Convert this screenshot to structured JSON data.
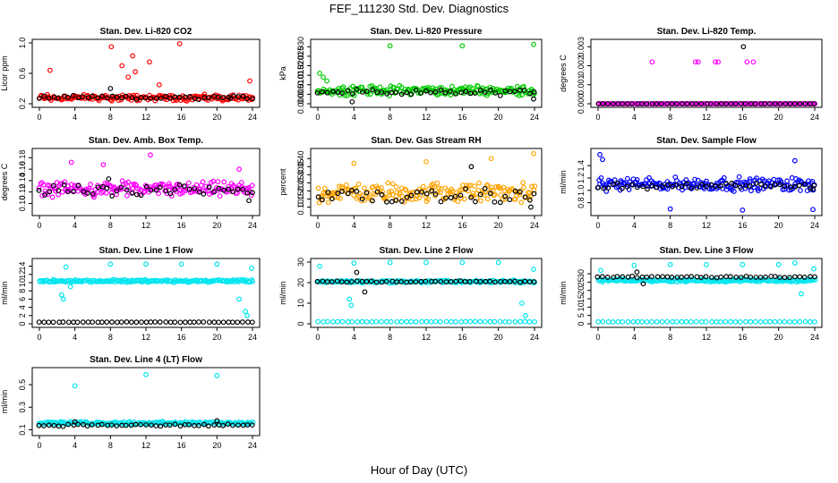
{
  "figure": {
    "title": "FEF_111230  Std. Dev. Diagnostics",
    "xlabel": "Hour of Day (UTC)"
  },
  "chart_data": [
    {
      "type": "scatter",
      "title": "Stan. Dev. Li-820 CO2",
      "ylabel": "Licor ppm",
      "xlim": [
        0,
        24
      ],
      "ylim": [
        0.2,
        1.0
      ],
      "xticks": [
        "0",
        "4",
        "8",
        "12",
        "16",
        "20",
        "24"
      ],
      "yticks": [
        "0.2",
        "0.6",
        "1.0"
      ],
      "series": [
        {
          "color": "#ff0000",
          "base": 0.28,
          "spread": 0.05,
          "outliers": [
            [
              0.9,
              0.32
            ],
            [
              1.2,
              0.64
            ],
            [
              8.1,
              0.95
            ],
            [
              9.3,
              0.7
            ],
            [
              10.0,
              0.55
            ],
            [
              10.5,
              0.83
            ],
            [
              10.8,
              0.62
            ],
            [
              12.4,
              0.75
            ],
            [
              13.5,
              0.45
            ],
            [
              15.8,
              0.99
            ],
            [
              23.7,
              0.5
            ]
          ]
        },
        {
          "color": "#000000",
          "base": 0.28,
          "spread": 0.03,
          "outliers": [
            [
              8.0,
              0.4
            ],
            [
              21.5,
              0.27
            ]
          ]
        }
      ]
    },
    {
      "type": "scatter",
      "title": "Stan. Dev. Li-820 Pressure",
      "ylabel": "kPa",
      "xlim": [
        0,
        24
      ],
      "ylim": [
        0,
        0.032
      ],
      "xticks": [
        "0",
        "4",
        "8",
        "12",
        "16",
        "20",
        "24"
      ],
      "yticks": [
        "0.000",
        "0.005",
        "0.010",
        "0.015",
        "0.020",
        "0.025",
        "0.030"
      ],
      "series": [
        {
          "color": "#00cc00",
          "base": 0.007,
          "spread": 0.003,
          "outliers": [
            [
              0.2,
              0.016
            ],
            [
              0.6,
              0.014
            ],
            [
              1.0,
              0.012
            ],
            [
              8.0,
              0.0305
            ],
            [
              16.0,
              0.0305
            ],
            [
              23.9,
              0.0312
            ]
          ]
        },
        {
          "color": "#000000",
          "base": 0.006,
          "spread": 0.002,
          "outliers": [
            [
              3.8,
              0.001
            ],
            [
              23.9,
              0.0025
            ]
          ]
        }
      ]
    },
    {
      "type": "scatter",
      "title": "Stan. Dev. Li-820 Temp.",
      "ylabel": "degrees C",
      "xlim": [
        0,
        24
      ],
      "ylim": [
        0,
        0.0032
      ],
      "xticks": [
        "0",
        "4",
        "8",
        "12",
        "16",
        "20",
        "24"
      ],
      "yticks": [
        "0.000",
        "0.001",
        "0.002",
        "0.003"
      ],
      "series": [
        {
          "color": "#ff00ff",
          "base": 0.0,
          "spread": 0.0,
          "outliers": [
            [
              6.0,
              0.0022
            ],
            [
              10.8,
              0.0022
            ],
            [
              11.1,
              0.0022
            ],
            [
              13.0,
              0.0022
            ],
            [
              13.3,
              0.0022
            ],
            [
              16.5,
              0.0022
            ],
            [
              17.2,
              0.0022
            ],
            [
              13.5,
              0.0
            ]
          ]
        },
        {
          "color": "#000000",
          "base": 0.0,
          "spread": 0.0,
          "outliers": [
            [
              16.1,
              0.003
            ]
          ]
        }
      ]
    },
    {
      "type": "scatter",
      "title": "Stan. Dev. Amb. Box Temp.",
      "ylabel": "degrees C",
      "xlim": [
        0,
        24
      ],
      "ylim": [
        0.085,
        0.19
      ],
      "xticks": [
        "0",
        "4",
        "8",
        "12",
        "16",
        "20",
        "24"
      ],
      "yticks": [
        "0.10",
        "0.12",
        "0.14",
        "0.16",
        "0.18"
      ],
      "series": [
        {
          "color": "#ff00ff",
          "base": 0.125,
          "spread": 0.015,
          "outliers": [
            [
              3.6,
              0.172
            ],
            [
              7.2,
              0.168
            ],
            [
              12.5,
              0.185
            ],
            [
              22.5,
              0.16
            ]
          ]
        },
        {
          "color": "#000000",
          "base": 0.122,
          "spread": 0.012,
          "outliers": [
            [
              7.8,
              0.143
            ],
            [
              23.6,
              0.105
            ]
          ]
        }
      ]
    },
    {
      "type": "scatter",
      "title": "Stan. Dev. Gas Stream RH",
      "ylabel": "percent",
      "xlim": [
        0,
        24
      ],
      "ylim": [
        0.07,
        0.44
      ],
      "xticks": [
        "0",
        "4",
        "8",
        "12",
        "16",
        "20",
        "24"
      ],
      "yticks": [
        "0.10",
        "0.15",
        "0.20",
        "0.25",
        "0.30",
        "0.35",
        "0.40"
      ],
      "series": [
        {
          "color": "#ffa500",
          "base": 0.19,
          "spread": 0.07,
          "outliers": [
            [
              4.0,
              0.37
            ],
            [
              12.0,
              0.38
            ],
            [
              19.2,
              0.4
            ],
            [
              23.9,
              0.43
            ]
          ]
        },
        {
          "color": "#000000",
          "base": 0.17,
          "spread": 0.05,
          "outliers": [
            [
              17.0,
              0.35
            ],
            [
              23.6,
              0.1
            ]
          ]
        }
      ]
    },
    {
      "type": "scatter",
      "title": "Stan. Dev. Sample Flow",
      "ylabel": "ml/min",
      "xlim": [
        0,
        24
      ],
      "ylim": [
        0.65,
        1.62
      ],
      "xticks": [
        "0",
        "4",
        "8",
        "12",
        "16",
        "20",
        "24"
      ],
      "yticks": [
        "0.8",
        "1.0",
        "1.2",
        "1.4"
      ],
      "series": [
        {
          "color": "#0000ff",
          "base": 1.1,
          "spread": 0.13,
          "outliers": [
            [
              0.2,
              1.58
            ],
            [
              0.5,
              1.5
            ],
            [
              8.0,
              0.7
            ],
            [
              16.0,
              0.68
            ],
            [
              23.8,
              0.69
            ],
            [
              21.8,
              1.48
            ]
          ]
        },
        {
          "color": "#000000",
          "base": 1.07,
          "spread": 0.06,
          "outliers": [
            [
              23.8,
              1.02
            ]
          ]
        }
      ]
    },
    {
      "type": "scatter",
      "title": "Stan. Dev. Line 1 Flow",
      "ylabel": "ml/min",
      "xlim": [
        0,
        24
      ],
      "ylim": [
        0,
        15
      ],
      "xticks": [
        "0",
        "4",
        "8",
        "12",
        "16",
        "20",
        "24"
      ],
      "yticks": [
        "0",
        "2",
        "4",
        "6",
        "8",
        "10",
        "12",
        "14"
      ],
      "series": [
        {
          "color": "#00e5ee",
          "base": 10.4,
          "spread": 0.4,
          "outliers": [
            [
              2.5,
              7.0
            ],
            [
              2.7,
              6.0
            ],
            [
              3.0,
              13.8
            ],
            [
              3.5,
              9.0
            ],
            [
              8.0,
              14.5
            ],
            [
              12.0,
              14.5
            ],
            [
              16.0,
              14.5
            ],
            [
              20.0,
              14.5
            ],
            [
              22.5,
              6.0
            ],
            [
              23.2,
              3.0
            ],
            [
              23.4,
              2.0
            ],
            [
              23.9,
              13.5
            ]
          ]
        },
        {
          "color": "#000000",
          "base": 0.4,
          "spread": 0.05,
          "outliers": []
        }
      ]
    },
    {
      "type": "scatter",
      "title": "Stan. Dev. Line 2 Flow",
      "ylabel": "ml/min",
      "xlim": [
        0,
        24
      ],
      "ylim": [
        0,
        30
      ],
      "xticks": [
        "0",
        "4",
        "8",
        "12",
        "16",
        "20",
        "24"
      ],
      "yticks": [
        "0",
        "10",
        "20",
        "30"
      ],
      "series": [
        {
          "color": "#00e5ee",
          "base": 20.5,
          "spread": 0.8,
          "outliers": [
            [
              0.2,
              28.0
            ],
            [
              3.5,
              12.0
            ],
            [
              3.7,
              9.0
            ],
            [
              4.0,
              29.5
            ],
            [
              8.0,
              29.8
            ],
            [
              12.0,
              29.8
            ],
            [
              16.0,
              29.8
            ],
            [
              20.0,
              29.8
            ],
            [
              22.6,
              10.0
            ],
            [
              23.0,
              4.0
            ],
            [
              23.9,
              26.5
            ]
          ]
        },
        {
          "color": "#000000",
          "base": 20.5,
          "spread": 0.4,
          "outliers": [
            [
              4.3,
              25.0
            ],
            [
              5.2,
              15.5
            ]
          ]
        },
        {
          "color": "#00e5ee",
          "base": 1.0,
          "spread": 0.1,
          "outliers": []
        }
      ]
    },
    {
      "type": "scatter",
      "title": "Stan. Dev. Line 3 Flow",
      "ylabel": "ml/min",
      "xlim": [
        0,
        24
      ],
      "ylim": [
        0,
        37
      ],
      "xticks": [
        "0",
        "4",
        "8",
        "12",
        "16",
        "20",
        "24"
      ],
      "yticks": [
        "0",
        "5",
        "10",
        "15",
        "20",
        "25",
        "30"
      ],
      "series": [
        {
          "color": "#00e5ee",
          "base": 26.0,
          "spread": 1.0,
          "outliers": [
            [
              0.3,
              32.0
            ],
            [
              4.0,
              35.0
            ],
            [
              8.0,
              35.5
            ],
            [
              12.0,
              35.5
            ],
            [
              16.0,
              35.5
            ],
            [
              20.0,
              35.5
            ],
            [
              21.8,
              36.5
            ],
            [
              22.5,
              18.0
            ],
            [
              23.9,
              33.0
            ]
          ]
        },
        {
          "color": "#000000",
          "base": 28.0,
          "spread": 0.6,
          "outliers": [
            [
              4.3,
              31.0
            ],
            [
              5.0,
              24.0
            ]
          ]
        },
        {
          "color": "#00e5ee",
          "base": 1.2,
          "spread": 0.1,
          "outliers": []
        }
      ]
    },
    {
      "type": "scatter",
      "title": "Stan. Dev. Line 4 (LT) Flow",
      "ylabel": "ml/min",
      "xlim": [
        0,
        24
      ],
      "ylim": [
        0.08,
        0.62
      ],
      "xticks": [
        "0",
        "4",
        "8",
        "12",
        "16",
        "20",
        "24"
      ],
      "yticks": [
        "0.1",
        "0.3",
        "0.5"
      ],
      "series": [
        {
          "color": "#00e5ee",
          "base": 0.16,
          "spread": 0.015,
          "outliers": [
            [
              4.0,
              0.49
            ],
            [
              12.0,
              0.59
            ],
            [
              20.0,
              0.58
            ]
          ]
        },
        {
          "color": "#000000",
          "base": 0.14,
          "spread": 0.012,
          "outliers": [
            [
              20.0,
              0.18
            ],
            [
              4.0,
              0.17
            ]
          ]
        }
      ]
    }
  ]
}
